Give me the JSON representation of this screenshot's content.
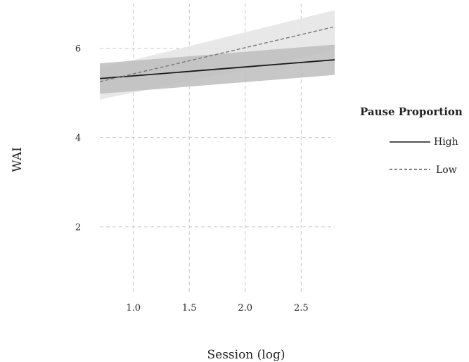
{
  "chart_data": {
    "type": "line",
    "xlabel": "Session (log)",
    "ylabel": "WAI",
    "xlim": [
      0.7,
      2.8
    ],
    "ylim": [
      0.5,
      7.0
    ],
    "x_ticks": [
      1.0,
      1.5,
      2.0,
      2.5
    ],
    "x_tick_labels": [
      "1.0",
      "1.5",
      "2.0",
      "2.5"
    ],
    "y_ticks": [
      2,
      4,
      6
    ],
    "y_tick_labels": [
      "2",
      "4",
      "6"
    ],
    "grid": true,
    "legend": {
      "title": "Pause Proportion",
      "position": "right"
    },
    "series": [
      {
        "name": "High",
        "line_style": "solid",
        "x": [
          0.7,
          2.8
        ],
        "y": [
          5.32,
          5.74
        ],
        "ci_lower": [
          4.98,
          5.4
        ],
        "ci_upper": [
          5.66,
          6.08
        ],
        "color": "#1a1a1a",
        "band_color": "#bdbdbd"
      },
      {
        "name": "Low",
        "line_style": "dashed",
        "x": [
          0.7,
          2.8
        ],
        "y": [
          5.25,
          6.48
        ],
        "ci_lower": [
          4.85,
          5.95
        ],
        "ci_upper": [
          5.55,
          6.85
        ],
        "color": "#777777",
        "band_color": "#e6e6e6"
      }
    ]
  }
}
